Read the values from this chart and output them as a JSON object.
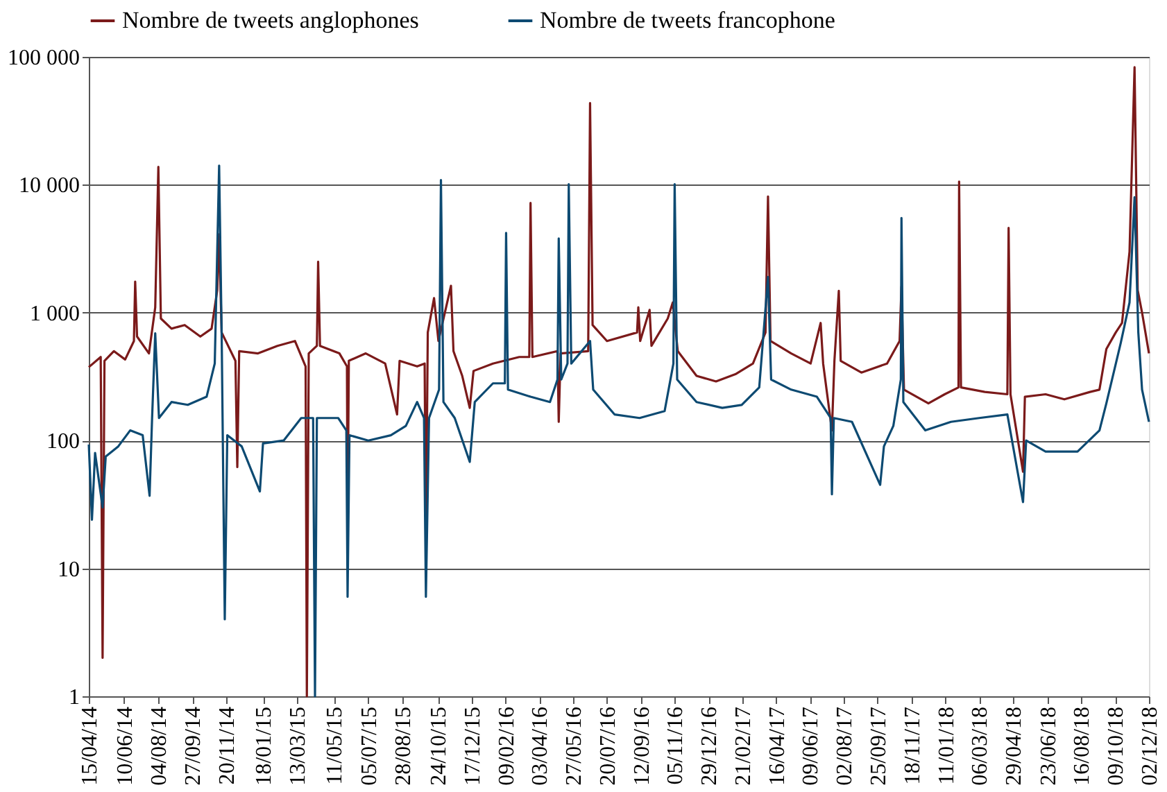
{
  "chart_data": {
    "type": "line",
    "log": "y",
    "grid": "y",
    "legend": "top",
    "line_style": "solid",
    "marker": "none",
    "xlim": [
      "2014-04-15",
      "2018-12-02"
    ],
    "xticks": [
      {
        "value": "2014-04-15",
        "label": "15/04/14"
      },
      {
        "value": "2014-06-10",
        "label": "10/06/14"
      },
      {
        "value": "2014-08-04",
        "label": "04/08/14"
      },
      {
        "value": "2014-09-27",
        "label": "27/09/14"
      },
      {
        "value": "2014-11-20",
        "label": "20/11/14"
      },
      {
        "value": "2015-01-18",
        "label": "18/01/15"
      },
      {
        "value": "2015-03-13",
        "label": "13/03/15"
      },
      {
        "value": "2015-05-11",
        "label": "11/05/15"
      },
      {
        "value": "2015-07-05",
        "label": "05/07/15"
      },
      {
        "value": "2015-08-28",
        "label": "28/08/15"
      },
      {
        "value": "2015-10-24",
        "label": "24/10/15"
      },
      {
        "value": "2015-12-17",
        "label": "17/12/15"
      },
      {
        "value": "2016-02-09",
        "label": "09/02/16"
      },
      {
        "value": "2016-04-03",
        "label": "03/04/16"
      },
      {
        "value": "2016-05-27",
        "label": "27/05/16"
      },
      {
        "value": "2016-07-20",
        "label": "20/07/16"
      },
      {
        "value": "2016-09-12",
        "label": "12/09/16"
      },
      {
        "value": "2016-11-05",
        "label": "05/11/16"
      },
      {
        "value": "2016-12-29",
        "label": "29/12/16"
      },
      {
        "value": "2017-02-21",
        "label": "21/02/17"
      },
      {
        "value": "2017-04-16",
        "label": "16/04/17"
      },
      {
        "value": "2017-06-09",
        "label": "09/06/17"
      },
      {
        "value": "2017-08-02",
        "label": "02/08/17"
      },
      {
        "value": "2017-09-25",
        "label": "25/09/17"
      },
      {
        "value": "2017-11-18",
        "label": "18/11/17"
      },
      {
        "value": "2018-01-11",
        "label": "11/01/18"
      },
      {
        "value": "2018-03-06",
        "label": "06/03/18"
      },
      {
        "value": "2018-04-29",
        "label": "29/04/18"
      },
      {
        "value": "2018-06-23",
        "label": "23/06/18"
      },
      {
        "value": "2018-08-16",
        "label": "16/08/18"
      },
      {
        "value": "2018-10-09",
        "label": "09/10/18"
      },
      {
        "value": "2018-12-02",
        "label": "02/12/18"
      }
    ],
    "ylim": [
      1,
      100000
    ],
    "yticks": [
      {
        "value": 1,
        "label": "1"
      },
      {
        "value": 10,
        "label": "10"
      },
      {
        "value": 100,
        "label": "100"
      },
      {
        "value": 1000,
        "label": "1 000"
      },
      {
        "value": 10000,
        "label": "10 000"
      },
      {
        "value": 100000,
        "label": "100 000"
      }
    ],
    "series": [
      {
        "name": "Nombre de tweets anglophones",
        "color": "#7b1a1a",
        "x": [
          "2014-04-15",
          "2014-05-04",
          "2014-05-07",
          "2014-05-10",
          "2014-05-25",
          "2014-06-12",
          "2014-06-26",
          "2014-06-28",
          "2014-07-01",
          "2014-07-20",
          "2014-07-30",
          "2014-08-04",
          "2014-08-08",
          "2014-08-25",
          "2014-09-15",
          "2014-10-10",
          "2014-10-28",
          "2014-11-06",
          "2014-11-09",
          "2014-11-13",
          "2014-12-05",
          "2014-12-08",
          "2014-12-11",
          "2015-01-10",
          "2015-02-10",
          "2015-03-10",
          "2015-03-27",
          "2015-03-29",
          "2015-04-01",
          "2015-04-14",
          "2015-04-16",
          "2015-04-19",
          "2015-05-20",
          "2015-06-01",
          "2015-06-02",
          "2015-06-04",
          "2015-07-01",
          "2015-08-01",
          "2015-08-20",
          "2015-08-24",
          "2015-09-21",
          "2015-10-03",
          "2015-10-05",
          "2015-10-08",
          "2015-10-18",
          "2015-10-25",
          "2015-11-14",
          "2015-11-18",
          "2015-12-02",
          "2015-12-14",
          "2015-12-20",
          "2016-01-20",
          "2016-03-02",
          "2016-03-18",
          "2016-03-20",
          "2016-03-23",
          "2016-05-02",
          "2016-05-04",
          "2016-05-07",
          "2016-06-20",
          "2016-06-23",
          "2016-06-27",
          "2016-07-20",
          "2016-09-06",
          "2016-09-08",
          "2016-09-11",
          "2016-09-26",
          "2016-09-29",
          "2016-10-25",
          "2016-11-02",
          "2016-11-10",
          "2016-12-10",
          "2017-01-10",
          "2017-02-10",
          "2017-03-10",
          "2017-03-30",
          "2017-04-03",
          "2017-04-07",
          "2017-05-10",
          "2017-06-10",
          "2017-06-26",
          "2017-06-30",
          "2017-07-14",
          "2017-07-18",
          "2017-07-25",
          "2017-07-28",
          "2017-08-30",
          "2017-10-10",
          "2017-10-30",
          "2017-11-02",
          "2017-11-06",
          "2017-12-15",
          "2018-01-10",
          "2018-02-01",
          "2018-02-02",
          "2018-02-05",
          "2018-03-15",
          "2018-04-20",
          "2018-04-22",
          "2018-04-25",
          "2018-05-15",
          "2018-05-18",
          "2018-06-20",
          "2018-07-20",
          "2018-08-30",
          "2018-09-14",
          "2018-09-25",
          "2018-10-10",
          "2018-10-20",
          "2018-11-01",
          "2018-11-09",
          "2018-11-14",
          "2018-11-21",
          "2018-12-02"
        ],
        "values": [
          375,
          450,
          2,
          420,
          500,
          430,
          600,
          1750,
          650,
          480,
          1100,
          13800,
          900,
          750,
          800,
          650,
          750,
          1500,
          4100,
          700,
          420,
          62,
          500,
          480,
          550,
          600,
          380,
          1,
          480,
          550,
          2500,
          550,
          480,
          380,
          21,
          420,
          480,
          400,
          160,
          420,
          380,
          400,
          14,
          700,
          1300,
          600,
          1620,
          500,
          320,
          180,
          350,
          400,
          450,
          450,
          7200,
          450,
          500,
          140,
          480,
          500,
          43600,
          800,
          600,
          700,
          1100,
          600,
          1050,
          550,
          900,
          1200,
          500,
          320,
          290,
          330,
          400,
          700,
          8100,
          600,
          480,
          400,
          830,
          400,
          120,
          420,
          1480,
          420,
          340,
          400,
          600,
          1600,
          250,
          195,
          230,
          260,
          10600,
          260,
          240,
          230,
          4600,
          230,
          57,
          220,
          230,
          210,
          240,
          250,
          520,
          700,
          830,
          3000,
          83000,
          1500,
          1000,
          480
        ]
      },
      {
        "name": "Nombre de tweets francophone",
        "color": "#0d4a72",
        "x": [
          "2014-04-15",
          "2014-04-20",
          "2014-04-25",
          "2014-05-07",
          "2014-05-12",
          "2014-06-01",
          "2014-06-20",
          "2014-07-10",
          "2014-07-21",
          "2014-07-25",
          "2014-07-30",
          "2014-08-05",
          "2014-08-25",
          "2014-09-20",
          "2014-10-20",
          "2014-11-02",
          "2014-11-09",
          "2014-11-13",
          "2014-11-18",
          "2014-11-22",
          "2014-12-15",
          "2015-01-13",
          "2015-01-18",
          "2015-02-20",
          "2015-03-20",
          "2015-04-08",
          "2015-04-11",
          "2015-04-14",
          "2015-05-18",
          "2015-05-31",
          "2015-06-02",
          "2015-06-05",
          "2015-07-05",
          "2015-08-10",
          "2015-09-03",
          "2015-09-21",
          "2015-10-02",
          "2015-10-05",
          "2015-10-10",
          "2015-10-26",
          "2015-10-29",
          "2015-11-02",
          "2015-11-20",
          "2015-12-14",
          "2015-12-22",
          "2016-01-20",
          "2016-02-08",
          "2016-02-10",
          "2016-02-13",
          "2016-03-20",
          "2016-04-20",
          "2016-05-02",
          "2016-05-04",
          "2016-05-08",
          "2016-05-18",
          "2016-05-20",
          "2016-05-24",
          "2016-06-23",
          "2016-06-28",
          "2016-08-01",
          "2016-09-10",
          "2016-10-20",
          "2016-11-03",
          "2016-11-05",
          "2016-11-09",
          "2016-12-10",
          "2017-01-20",
          "2017-02-20",
          "2017-03-20",
          "2017-04-03",
          "2017-04-08",
          "2017-05-10",
          "2017-06-20",
          "2017-07-12",
          "2017-07-14",
          "2017-07-17",
          "2017-08-15",
          "2017-09-29",
          "2017-10-05",
          "2017-10-20",
          "2017-11-01",
          "2017-11-02",
          "2017-11-05",
          "2017-12-10",
          "2018-01-20",
          "2018-03-06",
          "2018-04-20",
          "2018-05-15",
          "2018-05-20",
          "2018-06-20",
          "2018-08-10",
          "2018-09-14",
          "2018-09-25",
          "2018-10-18",
          "2018-11-01",
          "2018-11-09",
          "2018-11-15",
          "2018-11-21",
          "2018-12-02"
        ],
        "values": [
          93,
          24,
          80,
          30,
          75,
          90,
          120,
          110,
          37,
          150,
          690,
          150,
          200,
          190,
          220,
          400,
          14100,
          700,
          4,
          110,
          90,
          40,
          95,
          100,
          150,
          150,
          1,
          150,
          150,
          120,
          6,
          110,
          100,
          110,
          130,
          200,
          150,
          6,
          150,
          250,
          10900,
          200,
          150,
          68,
          200,
          280,
          280,
          4200,
          250,
          220,
          200,
          300,
          3800,
          300,
          400,
          10100,
          400,
          600,
          250,
          160,
          150,
          170,
          400,
          10100,
          300,
          200,
          180,
          190,
          260,
          1900,
          300,
          250,
          220,
          150,
          38,
          150,
          140,
          45,
          90,
          130,
          300,
          5500,
          200,
          120,
          140,
          150,
          160,
          33,
          100,
          82,
          82,
          120,
          195,
          580,
          1200,
          8000,
          700,
          250,
          140
        ]
      }
    ]
  }
}
